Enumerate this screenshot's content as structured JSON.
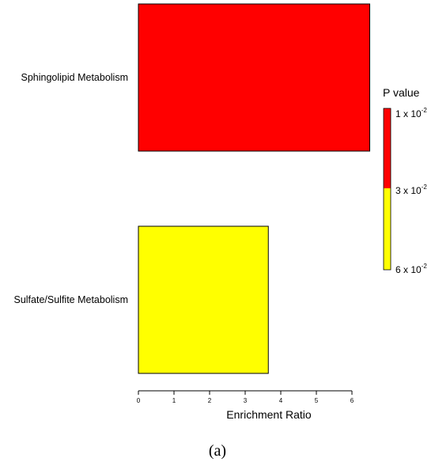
{
  "chart_data": {
    "type": "bar",
    "orientation": "horizontal",
    "categories": [
      "Sphingolipid Metabolism",
      "Sulfate/Sulfite Metabolism"
    ],
    "values": [
      6.5,
      3.65
    ],
    "bar_colors": [
      "#ff0000",
      "#ffff00"
    ],
    "xlabel": "Enrichment Ratio",
    "xlim": [
      0,
      6.5
    ],
    "xticks": [
      "0",
      "1",
      "2",
      "3",
      "4",
      "5",
      "6"
    ],
    "grid": false,
    "legend": {
      "title": "P value",
      "placement": "right",
      "colors": [
        "#ff0000",
        "#ffff00"
      ],
      "labels": [
        {
          "base": "1 x 10",
          "exp": "-2"
        },
        {
          "base": "3 x 10",
          "exp": "-2"
        },
        {
          "base": "6 x 10",
          "exp": "-2"
        }
      ]
    }
  },
  "caption": "(a)"
}
